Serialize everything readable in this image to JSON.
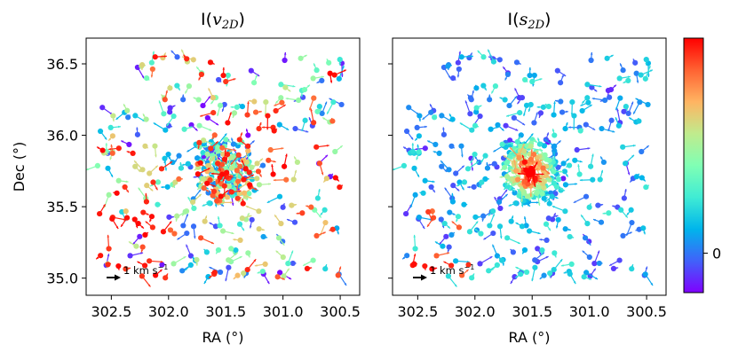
{
  "chart_data": [
    {
      "type": "scatter",
      "panel": "left",
      "title_prefix": "I(",
      "title_var": "v",
      "title_sub": "2D",
      "title_suffix": ")",
      "xlabel": "RA (°)",
      "ylabel": "Dec (°)",
      "xlim": [
        302.72,
        300.33
      ],
      "ylim": [
        34.88,
        36.68
      ],
      "xticks": [
        302.5,
        302.0,
        301.5,
        301.0,
        300.5
      ],
      "xtick_labels": [
        "302.5",
        "302.0",
        "301.5",
        "301.0",
        "300.5"
      ],
      "yticks": [
        35.0,
        35.5,
        36.0,
        36.5
      ],
      "ytick_labels": [
        "35.0",
        "35.5",
        "36.0",
        "36.5"
      ],
      "scale_arrow_label": "1 km s",
      "scale_arrow_exp": "−1",
      "color_mode": "random",
      "description": "proper-motion vectors of stars colored by I(v2D) on a rainbow scale; a dense cluster centered near RA 301.5, Dec 35.75"
    },
    {
      "type": "scatter",
      "panel": "right",
      "title_prefix": "I(",
      "title_var": "s",
      "title_sub": "2D",
      "title_suffix": ")",
      "xlabel": "RA (°)",
      "ylabel": "",
      "xlim": [
        302.72,
        300.33
      ],
      "ylim": [
        34.88,
        36.68
      ],
      "xticks": [
        302.5,
        302.0,
        301.5,
        301.0,
        300.5
      ],
      "xtick_labels": [
        "302.5",
        "302.0",
        "301.5",
        "301.0",
        "300.5"
      ],
      "yticks": [
        35.0,
        35.5,
        36.0,
        36.5
      ],
      "ytick_labels": [
        "",
        "",
        "",
        ""
      ],
      "scale_arrow_label": "1 km s",
      "scale_arrow_exp": "−1",
      "color_mode": "radial",
      "description": "same stars colored by I(s2D); high (red) values concentrated at the cluster center near RA 301.5, Dec 35.75, low (blue/purple) values in the outskirts"
    }
  ],
  "colorbar": {
    "colormap": "rainbow",
    "tick_values": [
      0
    ],
    "tick_labels": [
      "0"
    ],
    "tick_position_fraction": 0.155
  },
  "colors": {
    "rainbow_stops": [
      "#8000ff",
      "#4062fa",
      "#00b5eb",
      "#40ecd4",
      "#80ffb4",
      "#c0eb8d",
      "#ffb462",
      "#ff6232",
      "#ff0000"
    ]
  }
}
